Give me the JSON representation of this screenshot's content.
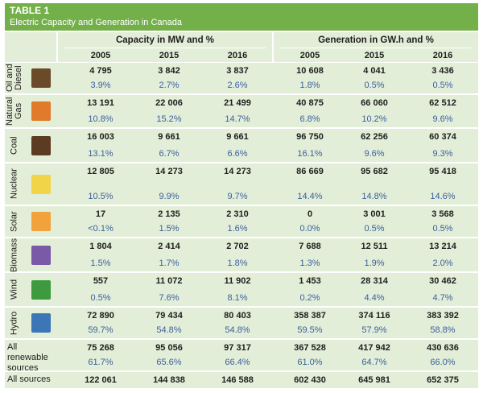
{
  "header": {
    "title": "TABLE 1",
    "subtitle": "Electric Capacity and Generation in Canada"
  },
  "table": {
    "groups": [
      "Capacity in MW and %",
      "Generation in GW.h and %"
    ],
    "years": [
      "2005",
      "2015",
      "2016",
      "2005",
      "2015",
      "2016"
    ],
    "rows": [
      {
        "label": "Oil and Diesel",
        "values": [
          "4 795",
          "3 842",
          "3 837",
          "10 608",
          "4 041",
          "3 436"
        ],
        "percents": [
          "3.9%",
          "2.7%",
          "2.6%",
          "1.8%",
          "0.5%",
          "0.5%"
        ]
      },
      {
        "label": "Natural Gas",
        "values": [
          "13 191",
          "22 006",
          "21 499",
          "40 875",
          "66 060",
          "62 512"
        ],
        "percents": [
          "10.8%",
          "15.2%",
          "14.7%",
          "6.8%",
          "10.2%",
          "9.6%"
        ]
      },
      {
        "label": "Coal",
        "values": [
          "16 003",
          "9 661",
          "9 661",
          "96 750",
          "62 256",
          "60 374"
        ],
        "percents": [
          "13.1%",
          "6.7%",
          "6.6%",
          "16.1%",
          "9.6%",
          "9.3%"
        ]
      },
      {
        "label": "Nuclear",
        "values": [
          "12 805",
          "14 273",
          "14 273",
          "86 669",
          "95 682",
          "95 418"
        ],
        "percents": [
          "10.5%",
          "9.9%",
          "9.7%",
          "14.4%",
          "14.8%",
          "14.6%"
        ]
      },
      {
        "label": "Solar",
        "values": [
          "17",
          "2 135",
          "2 310",
          "0",
          "3 001",
          "3 568"
        ],
        "percents": [
          "<0.1%",
          "1.5%",
          "1.6%",
          "0.0%",
          "0.5%",
          "0.5%"
        ]
      },
      {
        "label": "Biomass",
        "values": [
          "1 804",
          "2 414",
          "2 702",
          "7 688",
          "12 511",
          "13 214"
        ],
        "percents": [
          "1.5%",
          "1.7%",
          "1.8%",
          "1.3%",
          "1.9%",
          "2.0%"
        ]
      },
      {
        "label": "Wind",
        "values": [
          "557",
          "11 072",
          "11 902",
          "1 453",
          "28 314",
          "30 462"
        ],
        "percents": [
          "0.5%",
          "7.6%",
          "8.1%",
          "0.2%",
          "4.4%",
          "4.7%"
        ]
      },
      {
        "label": "Hydro",
        "values": [
          "72 890",
          "79 434",
          "80 403",
          "358 387",
          "374 116",
          "383 392"
        ],
        "percents": [
          "59.7%",
          "54.8%",
          "54.8%",
          "59.5%",
          "57.9%",
          "58.8%"
        ]
      },
      {
        "label": "All renewable sources",
        "values": [
          "75 268",
          "95 056",
          "97 317",
          "367 528",
          "417 942",
          "430 636"
        ],
        "percents": [
          "61.7%",
          "65.6%",
          "66.4%",
          "61.0%",
          "64.7%",
          "66.0%"
        ]
      },
      {
        "label": "All sources",
        "values": [
          "122 061",
          "144 838",
          "146 588",
          "602 430",
          "645 981",
          "652 375"
        ]
      }
    ]
  }
}
